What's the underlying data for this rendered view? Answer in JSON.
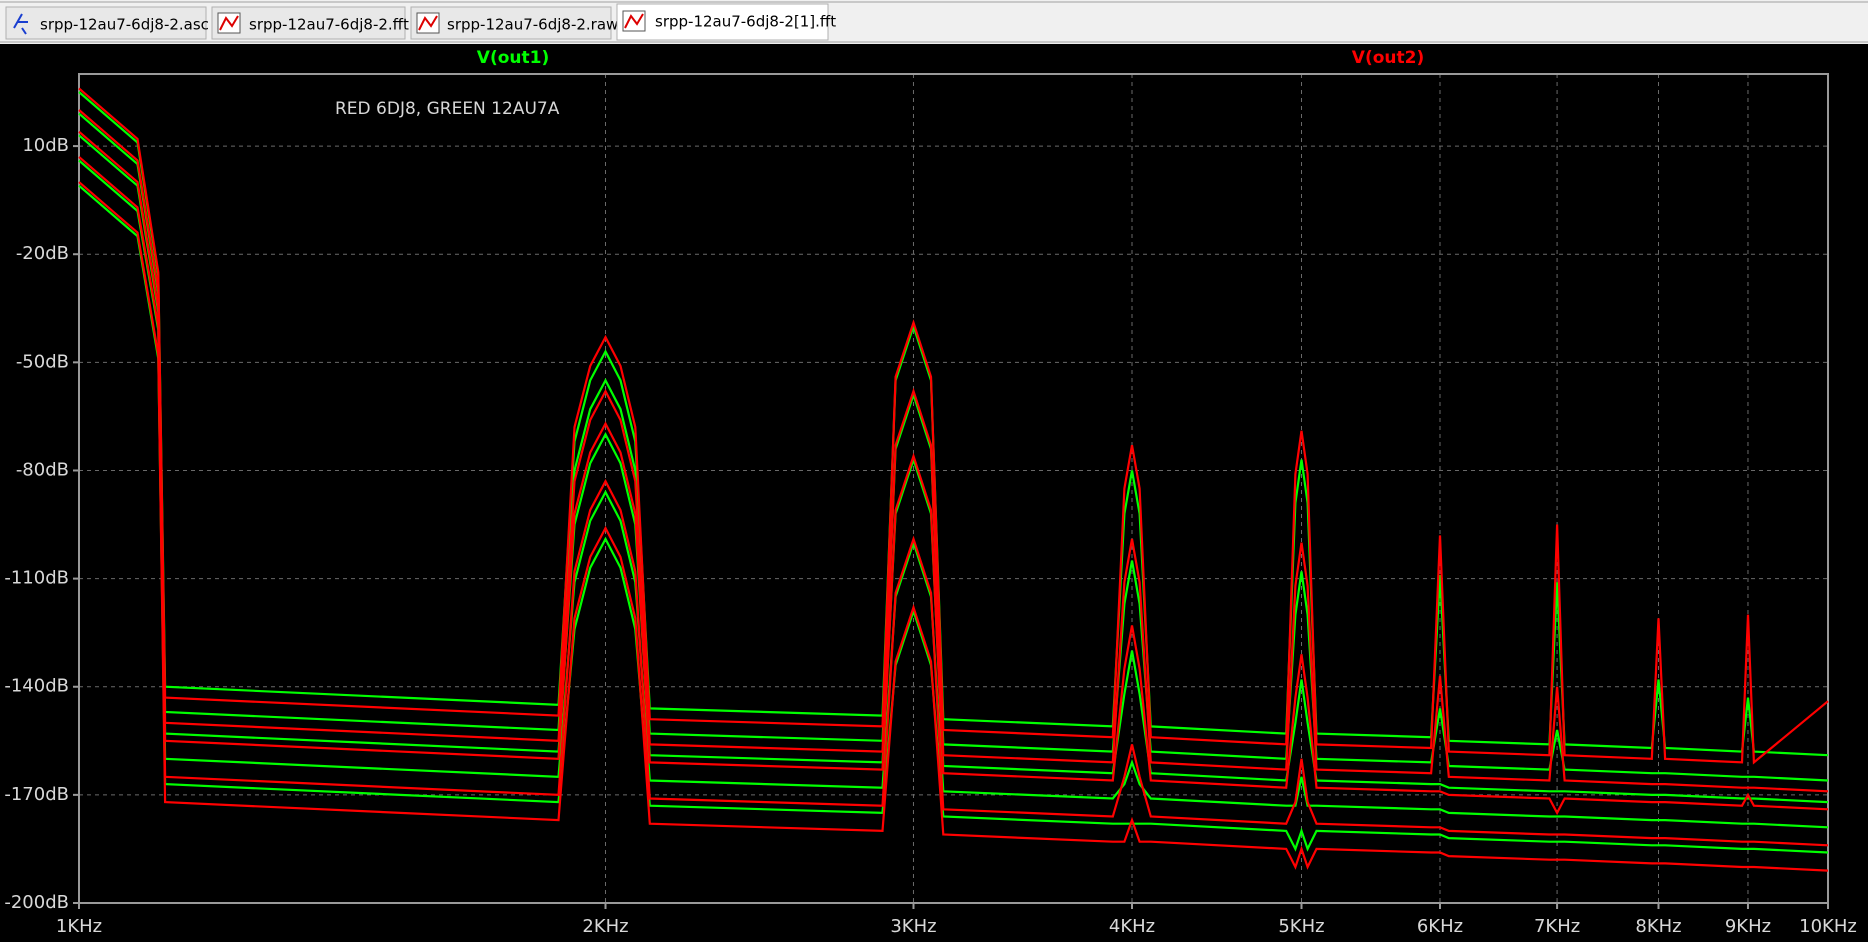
{
  "tabs": [
    "srpp-12au7-6dj8-2.asc",
    "srpp-12au7-6dj8-2.fft",
    "srpp-12au7-6dj8-2.raw",
    "srpp-12au7-6dj8-2[1].fft"
  ],
  "chart_data": {
    "type": "line",
    "annotation": "RED 6DJ8, GREEN 12AU7A",
    "xscale": "log",
    "grid": true,
    "xlim": [
      1000,
      10000
    ],
    "ylim": [
      -200,
      30
    ],
    "xticks": [
      {
        "value": 1000,
        "label": "1KHz"
      },
      {
        "value": 2000,
        "label": "2KHz"
      },
      {
        "value": 3000,
        "label": "3KHz"
      },
      {
        "value": 4000,
        "label": "4KHz"
      },
      {
        "value": 5000,
        "label": "5KHz"
      },
      {
        "value": 6000,
        "label": "6KHz"
      },
      {
        "value": 7000,
        "label": "7KHz"
      },
      {
        "value": 8000,
        "label": "8KHz"
      },
      {
        "value": 9000,
        "label": "9KHz"
      },
      {
        "value": 10000,
        "label": "10KHz"
      }
    ],
    "yticks": [
      {
        "value": 10,
        "label": "10dB"
      },
      {
        "value": -20,
        "label": "-20dB"
      },
      {
        "value": -50,
        "label": "-50dB"
      },
      {
        "value": -80,
        "label": "-80dB"
      },
      {
        "value": -110,
        "label": "-110dB"
      },
      {
        "value": -140,
        "label": "-140dB"
      },
      {
        "value": -170,
        "label": "-170dB"
      },
      {
        "value": -200,
        "label": "-200dB"
      }
    ],
    "x": [
      1000,
      1080,
      1110,
      1120,
      1880,
      1920,
      1960,
      2000,
      2040,
      2080,
      2120,
      2880,
      2930,
      3000,
      3070,
      3120,
      3900,
      3960,
      4000,
      4040,
      4100,
      4900,
      4960,
      5000,
      5040,
      5100,
      5930,
      6000,
      6070,
      6930,
      7000,
      7070,
      7930,
      8000,
      8070,
      8930,
      9000,
      9070,
      10000
    ],
    "series": [
      {
        "name": "V(out1)",
        "color": "#00ff00",
        "steps": [
          [
            25,
            11,
            -26,
            -140,
            -145,
            -72,
            -55,
            -47,
            -55,
            -72,
            -146,
            -148,
            -55,
            -40,
            -55,
            -149,
            -151,
            -92,
            -80,
            -92,
            -151,
            -153,
            -89,
            -77,
            -89,
            -153,
            -154,
            -109,
            -155,
            -156,
            -111,
            -156,
            -157,
            -138,
            -157,
            -158,
            -143,
            -158,
            -159
          ],
          [
            19,
            5,
            -31,
            -147,
            -152,
            -80,
            -63,
            -55,
            -63,
            -80,
            -153,
            -155,
            -74,
            -59,
            -74,
            -156,
            -158,
            -117,
            -105,
            -117,
            -158,
            -160,
            -120,
            -108,
            -120,
            -160,
            -161,
            -146,
            -162,
            -163,
            -152,
            -163,
            -164,
            -164,
            -164,
            -165,
            -165,
            -165,
            -166
          ],
          [
            13,
            -1,
            -36,
            -153,
            -158,
            -95,
            -78,
            -70,
            -78,
            -95,
            -159,
            -161,
            -92,
            -77,
            -92,
            -162,
            -164,
            -142,
            -130,
            -142,
            -164,
            -166,
            -150,
            -138,
            -150,
            -166,
            -167,
            -167,
            -168,
            -169,
            -169,
            -169,
            -170,
            -170,
            -170,
            -171,
            -171,
            -171,
            -172
          ],
          [
            6,
            -8,
            -41,
            -160,
            -165,
            -111,
            -94,
            -86,
            -94,
            -111,
            -166,
            -168,
            -115,
            -100,
            -115,
            -169,
            -171,
            -167,
            -161,
            -167,
            -171,
            -173,
            -173,
            -165,
            -173,
            -173,
            -174,
            -174,
            -175,
            -176,
            -176,
            -176,
            -177,
            -177,
            -177,
            -178,
            -178,
            -178,
            -179
          ],
          [
            -1,
            -15,
            -49,
            -167,
            -172,
            -124,
            -107,
            -99,
            -107,
            -124,
            -173,
            -175,
            -134,
            -119,
            -134,
            -176,
            -178,
            -178,
            -178,
            -178,
            -178,
            -180,
            -185,
            -180,
            -185,
            -180,
            -181,
            -181,
            -182,
            -183,
            -183,
            -183,
            -184,
            -184,
            -184,
            -185,
            -185,
            -185,
            -186
          ]
        ]
      },
      {
        "name": "V(out2)",
        "color": "#ff0000",
        "steps": [
          [
            26,
            12,
            -25,
            -143,
            -148,
            -68,
            -51,
            -43,
            -51,
            -68,
            -149,
            -151,
            -54,
            -39,
            -54,
            -152,
            -154,
            -85,
            -73,
            -85,
            -154,
            -156,
            -81,
            -69,
            -81,
            -156,
            -157,
            -98,
            -158,
            -159,
            -95,
            -159,
            -160,
            -121,
            -160,
            -161,
            -120,
            -161,
            -144
          ],
          [
            20,
            6,
            -30,
            -150,
            -155,
            -83,
            -66,
            -58,
            -66,
            -83,
            -156,
            -158,
            -73,
            -58,
            -73,
            -159,
            -161,
            -111,
            -99,
            -111,
            -161,
            -163,
            -112,
            -100,
            -112,
            -163,
            -164,
            -137,
            -165,
            -166,
            -140,
            -166,
            -167,
            -167,
            -167,
            -168,
            -168,
            -168,
            -169
          ],
          [
            14,
            0,
            -35,
            -155,
            -160,
            -92,
            -75,
            -67,
            -75,
            -92,
            -161,
            -163,
            -91,
            -76,
            -91,
            -164,
            -166,
            -135,
            -123,
            -135,
            -166,
            -168,
            -143,
            -131,
            -143,
            -168,
            -169,
            -169,
            -170,
            -171,
            -175,
            -171,
            -172,
            -172,
            -172,
            -173,
            -170,
            -173,
            -174
          ],
          [
            7,
            -7,
            -40,
            -165,
            -170,
            -108,
            -91,
            -83,
            -91,
            -108,
            -171,
            -173,
            -114,
            -99,
            -114,
            -174,
            -176,
            -165,
            -156,
            -165,
            -176,
            -178,
            -172,
            -160,
            -172,
            -178,
            -179,
            -179,
            -180,
            -181,
            -181,
            -181,
            -182,
            -182,
            -182,
            -183,
            -183,
            -183,
            -184
          ],
          [
            0,
            -14,
            -48,
            -172,
            -177,
            -121,
            -104,
            -96,
            -104,
            -121,
            -178,
            -180,
            -133,
            -118,
            -133,
            -181,
            -183,
            -183,
            -177,
            -183,
            -183,
            -185,
            -190,
            -185,
            -190,
            -185,
            -186,
            -186,
            -187,
            -188,
            -188,
            -188,
            -189,
            -189,
            -189,
            -190,
            -190,
            -190,
            -191
          ]
        ]
      }
    ]
  }
}
